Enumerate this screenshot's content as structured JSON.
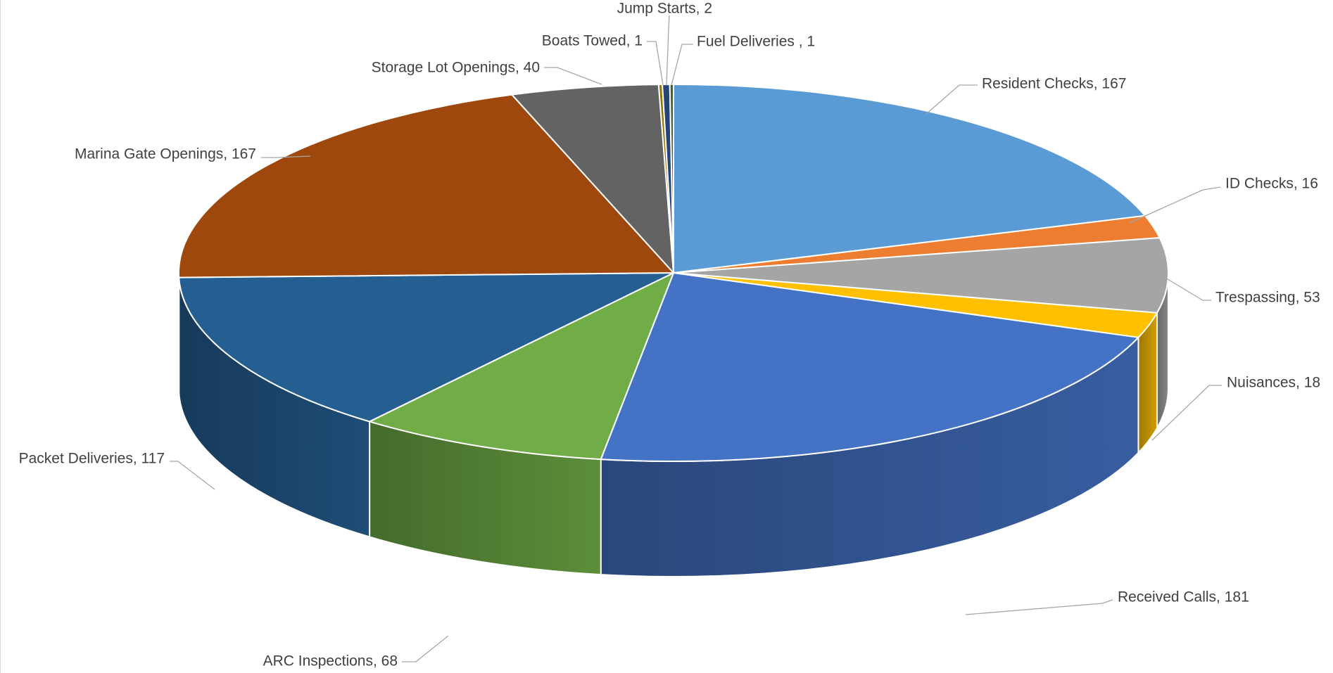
{
  "chart_data": {
    "type": "pie",
    "style": "3d",
    "start": "top, clockwise",
    "slices": [
      {
        "label": "Resident Checks",
        "value": 167,
        "display": "Resident Checks, 167",
        "color": "#5b9bd5"
      },
      {
        "label": "ID Checks",
        "value": 16,
        "display": "ID Checks, 16",
        "color": "#ed7d31"
      },
      {
        "label": "Trespassing",
        "value": 53,
        "display": "Trespassing, 53",
        "color": "#a5a5a5"
      },
      {
        "label": "Nuisances",
        "value": 18,
        "display": "Nuisances, 18",
        "color": "#ffc000"
      },
      {
        "label": "Received Calls",
        "value": 181,
        "display": "Received Calls, 181",
        "color": "#4472c4"
      },
      {
        "label": "ARC Inspections",
        "value": 68,
        "display": "ARC Inspections, 68",
        "color": "#70ad47"
      },
      {
        "label": "Packet Deliveries",
        "value": 117,
        "display": "Packet Deliveries, 117",
        "color": "#255e91"
      },
      {
        "label": "Marina Gate Openings",
        "value": 167,
        "display": "Marina Gate Openings, 167",
        "color": "#9e480e"
      },
      {
        "label": "Storage Lot Openings",
        "value": 40,
        "display": "Storage Lot Openings, 40",
        "color": "#636363"
      },
      {
        "label": "Boats Towed",
        "value": 1,
        "display": "Boats Towed, 1",
        "color": "#997300"
      },
      {
        "label": "Jump Starts",
        "value": 2,
        "display": "Jump Starts, 2",
        "color": "#264478"
      },
      {
        "label": "Fuel Deliveries",
        "value": 1,
        "display": "Fuel Deliveries , 1",
        "color": "#43682b"
      }
    ]
  }
}
